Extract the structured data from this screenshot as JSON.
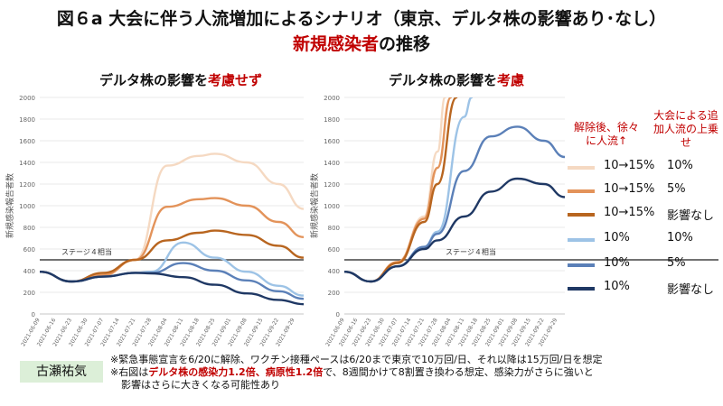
{
  "header": {
    "title": "図６a  大会に伴う人流増加によるシナリオ（東京、デルタ株の影響あり･なし）",
    "subtitle_red": "新規感染者",
    "subtitle_rest": "の推移"
  },
  "chart_titles": {
    "left_prefix": "デルタ株の影響を",
    "left_red": "考慮せず",
    "right_prefix": "デルタ株の影響を",
    "right_red": "考慮"
  },
  "legend": {
    "header_a": "解除後、徐々に人流↑",
    "header_b": "大会による追加人流の上乗せ",
    "rows": [
      {
        "a": "10→15%",
        "b": "10%"
      },
      {
        "a": "10→15%",
        "b": "5%"
      },
      {
        "a": "10→15%",
        "b": "影響なし"
      },
      {
        "a": "10%",
        "b": "10%"
      },
      {
        "a": "10%",
        "b": "5%"
      },
      {
        "a": "10%",
        "b": "影響なし"
      }
    ]
  },
  "colors": [
    "#f5d9c2",
    "#e3935a",
    "#b8651f",
    "#9dc3e6",
    "#5b80b8",
    "#1f3864"
  ],
  "author": "古瀬祐気",
  "notes": {
    "n1": "※緊急事態宣言を6/20に解除、ワクチン接種ペースは6/20まで東京で10万回/日、それ以降は15万回/日を想定",
    "n2_a": "※右図は",
    "n2_b": "デルタ株の感染力1.2倍、病原性1.2倍",
    "n2_c": "で、8週間かけて8割置き換わる想定、感染力がさらに強いと",
    "n3": "影響はさらに大きくなる可能性あり"
  },
  "chart_data": [
    {
      "type": "line",
      "title": "デルタ株の影響を考慮せず",
      "ylabel": "新規感染報告者数",
      "ylim": [
        0,
        2000
      ],
      "yticks": [
        0,
        200,
        400,
        600,
        800,
        1000,
        1200,
        1400,
        1600,
        1800,
        2000
      ],
      "x_ticks": [
        "2021-06-09",
        "2021-06-16",
        "2021-06-23",
        "2021-06-30",
        "2021-07-07",
        "2021-07-14",
        "2021-07-21",
        "2021-07-28",
        "2021-08-04",
        "2021-08-11",
        "2021-08-18",
        "2021-08-25",
        "2021-09-01",
        "2021-09-08",
        "2021-09-15",
        "2021-09-22",
        "2021-09-29"
      ],
      "reference": {
        "label": "ステージ４相当",
        "value": 500
      },
      "x_range": [
        "2021-06-09",
        "2021-10-03"
      ],
      "series": [
        {
          "points": [
            [
              "2021-06-09",
              390
            ],
            [
              "2021-06-23",
              300
            ],
            [
              "2021-07-07",
              360
            ],
            [
              "2021-07-21",
              500
            ],
            [
              "2021-08-04",
              1370
            ],
            [
              "2021-08-18",
              1460
            ],
            [
              "2021-08-25",
              1480
            ],
            [
              "2021-09-08",
              1400
            ],
            [
              "2021-09-22",
              1200
            ],
            [
              "2021-10-03",
              970
            ]
          ]
        },
        {
          "points": [
            [
              "2021-06-09",
              390
            ],
            [
              "2021-06-23",
              300
            ],
            [
              "2021-07-07",
              360
            ],
            [
              "2021-07-21",
              500
            ],
            [
              "2021-08-04",
              990
            ],
            [
              "2021-08-18",
              1060
            ],
            [
              "2021-08-25",
              1070
            ],
            [
              "2021-09-08",
              1000
            ],
            [
              "2021-09-22",
              850
            ],
            [
              "2021-10-03",
              710
            ]
          ]
        },
        {
          "points": [
            [
              "2021-06-09",
              390
            ],
            [
              "2021-06-23",
              300
            ],
            [
              "2021-07-07",
              380
            ],
            [
              "2021-07-21",
              500
            ],
            [
              "2021-08-04",
              680
            ],
            [
              "2021-08-18",
              750
            ],
            [
              "2021-08-25",
              770
            ],
            [
              "2021-09-08",
              730
            ],
            [
              "2021-09-22",
              630
            ],
            [
              "2021-10-03",
              520
            ]
          ]
        },
        {
          "points": [
            [
              "2021-06-09",
              390
            ],
            [
              "2021-06-23",
              300
            ],
            [
              "2021-07-07",
              345
            ],
            [
              "2021-07-21",
              380
            ],
            [
              "2021-07-28",
              390
            ],
            [
              "2021-08-11",
              660
            ],
            [
              "2021-08-25",
              520
            ],
            [
              "2021-09-08",
              390
            ],
            [
              "2021-09-22",
              260
            ],
            [
              "2021-10-03",
              170
            ]
          ]
        },
        {
          "points": [
            [
              "2021-06-09",
              390
            ],
            [
              "2021-06-23",
              300
            ],
            [
              "2021-07-07",
              345
            ],
            [
              "2021-07-21",
              380
            ],
            [
              "2021-07-28",
              380
            ],
            [
              "2021-08-11",
              470
            ],
            [
              "2021-08-25",
              400
            ],
            [
              "2021-09-08",
              310
            ],
            [
              "2021-09-22",
              210
            ],
            [
              "2021-10-03",
              140
            ]
          ]
        },
        {
          "points": [
            [
              "2021-06-09",
              390
            ],
            [
              "2021-06-23",
              300
            ],
            [
              "2021-07-07",
              345
            ],
            [
              "2021-07-21",
              380
            ],
            [
              "2021-07-28",
              375
            ],
            [
              "2021-08-11",
              340
            ],
            [
              "2021-08-25",
              270
            ],
            [
              "2021-09-08",
              190
            ],
            [
              "2021-09-22",
              130
            ],
            [
              "2021-10-03",
              90
            ]
          ]
        }
      ]
    },
    {
      "type": "line",
      "title": "デルタ株の影響を考慮",
      "ylabel": "新規感染報告者数",
      "ylim": [
        0,
        2000
      ],
      "yticks": [
        0,
        200,
        400,
        600,
        800,
        1000,
        1200,
        1400,
        1600,
        1800,
        2000
      ],
      "x_ticks": [
        "2021-06-09",
        "2021-06-16",
        "2021-06-23",
        "2021-06-30",
        "2021-07-07",
        "2021-07-14",
        "2021-07-21",
        "2021-07-28",
        "2021-08-04",
        "2021-08-11",
        "2021-08-18",
        "2021-08-25",
        "2021-09-01",
        "2021-09-08",
        "2021-09-15",
        "2021-09-22",
        "2021-09-29"
      ],
      "reference": {
        "label": "ステージ４相当",
        "value": 500
      },
      "x_range": [
        "2021-06-09",
        "2021-10-03"
      ],
      "series": [
        {
          "points": [
            [
              "2021-06-09",
              390
            ],
            [
              "2021-06-23",
              300
            ],
            [
              "2021-07-07",
              480
            ],
            [
              "2021-07-21",
              900
            ],
            [
              "2021-07-28",
              1500
            ],
            [
              "2021-08-01",
              2000
            ]
          ]
        },
        {
          "points": [
            [
              "2021-06-09",
              390
            ],
            [
              "2021-06-23",
              300
            ],
            [
              "2021-07-07",
              480
            ],
            [
              "2021-07-21",
              880
            ],
            [
              "2021-07-28",
              1350
            ],
            [
              "2021-08-04",
              2000
            ]
          ]
        },
        {
          "points": [
            [
              "2021-06-09",
              390
            ],
            [
              "2021-06-23",
              300
            ],
            [
              "2021-07-07",
              470
            ],
            [
              "2021-07-21",
              850
            ],
            [
              "2021-07-28",
              1200
            ],
            [
              "2021-08-07",
              2000
            ]
          ]
        },
        {
          "points": [
            [
              "2021-06-09",
              390
            ],
            [
              "2021-06-23",
              300
            ],
            [
              "2021-07-07",
              440
            ],
            [
              "2021-07-21",
              620
            ],
            [
              "2021-07-28",
              760
            ],
            [
              "2021-08-11",
              1820
            ],
            [
              "2021-08-15",
              2000
            ]
          ]
        },
        {
          "points": [
            [
              "2021-06-09",
              390
            ],
            [
              "2021-06-23",
              300
            ],
            [
              "2021-07-07",
              440
            ],
            [
              "2021-07-21",
              620
            ],
            [
              "2021-07-28",
              740
            ],
            [
              "2021-08-11",
              1320
            ],
            [
              "2021-08-25",
              1640
            ],
            [
              "2021-09-08",
              1730
            ],
            [
              "2021-09-22",
              1600
            ],
            [
              "2021-10-03",
              1450
            ]
          ]
        },
        {
          "points": [
            [
              "2021-06-09",
              390
            ],
            [
              "2021-06-23",
              300
            ],
            [
              "2021-07-07",
              440
            ],
            [
              "2021-07-21",
              600
            ],
            [
              "2021-07-28",
              680
            ],
            [
              "2021-08-11",
              900
            ],
            [
              "2021-08-25",
              1130
            ],
            [
              "2021-09-08",
              1250
            ],
            [
              "2021-09-22",
              1200
            ],
            [
              "2021-10-03",
              1080
            ]
          ]
        }
      ]
    }
  ]
}
